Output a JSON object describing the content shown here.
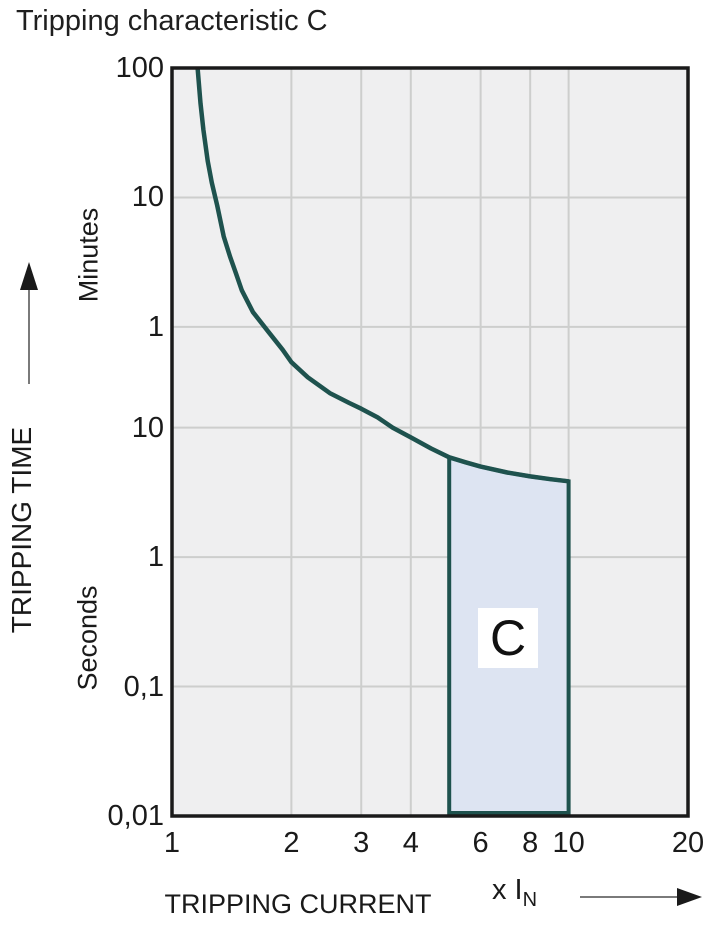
{
  "chart_data": {
    "type": "line",
    "title": "Tripping characteristic C",
    "x_axis": {
      "label": "TRIPPING CURRENT",
      "unit_prefix": "x I",
      "unit_sub": "N",
      "scale": "log",
      "min": 1,
      "max": 20,
      "ticks": [
        {
          "value": 1,
          "label": "1"
        },
        {
          "value": 2,
          "label": "2"
        },
        {
          "value": 3,
          "label": "3"
        },
        {
          "value": 4,
          "label": "4"
        },
        {
          "value": 6,
          "label": "6"
        },
        {
          "value": 8,
          "label": "8"
        },
        {
          "value": 10,
          "label": "10"
        },
        {
          "value": 20,
          "label": "20"
        }
      ],
      "gridlines": [
        2,
        3,
        4,
        6,
        8,
        10
      ]
    },
    "y_axis": {
      "label": "TRIPPING TIME",
      "scale": "log",
      "min_seconds": 0.01,
      "max_seconds": 6000,
      "unit_groups": [
        {
          "name": "Minutes",
          "ticks": [
            {
              "seconds": 6000,
              "label": "100"
            },
            {
              "seconds": 600,
              "label": "10"
            },
            {
              "seconds": 60,
              "label": "1"
            }
          ]
        },
        {
          "name": "Seconds",
          "ticks": [
            {
              "seconds": 10,
              "label": "10"
            },
            {
              "seconds": 1,
              "label": "1"
            },
            {
              "seconds": 0.1,
              "label": "0,1"
            },
            {
              "seconds": 0.01,
              "label": "0,01"
            }
          ]
        }
      ],
      "gridlines_seconds": [
        600,
        60,
        10,
        1,
        0.1
      ]
    },
    "series": [
      {
        "name": "C tripping curve",
        "points_x_in_y_seconds": [
          [
            1.16,
            6000
          ],
          [
            1.18,
            3200
          ],
          [
            1.2,
            2000
          ],
          [
            1.23,
            1150
          ],
          [
            1.26,
            780
          ],
          [
            1.3,
            520
          ],
          [
            1.35,
            300
          ],
          [
            1.4,
            210
          ],
          [
            1.45,
            155
          ],
          [
            1.5,
            115
          ],
          [
            1.6,
            78
          ],
          [
            1.75,
            55
          ],
          [
            1.9,
            40
          ],
          [
            2.0,
            32
          ],
          [
            2.2,
            24.5
          ],
          [
            2.5,
            18.5
          ],
          [
            2.8,
            15.5
          ],
          [
            3.0,
            14
          ],
          [
            3.3,
            12
          ],
          [
            3.6,
            10
          ],
          [
            4.0,
            8.4
          ],
          [
            4.5,
            6.9
          ],
          [
            5.0,
            5.9
          ],
          [
            5.5,
            5.4
          ],
          [
            6.0,
            5.0
          ],
          [
            7.0,
            4.5
          ],
          [
            8.0,
            4.2
          ],
          [
            9.0,
            4.0
          ],
          [
            10.0,
            3.85
          ]
        ]
      }
    ],
    "region": {
      "label": "C",
      "x_from": 5,
      "x_to": 10,
      "bottom_seconds": 0.01
    },
    "colors": {
      "curve": "#1e524e",
      "region_fill": "#dde4f2",
      "region_border": "#1e524e",
      "plot_background": "#efeff0",
      "gridline": "#cdcecd",
      "plot_border": "#1a1a1a",
      "text": "#1a1a1a"
    }
  }
}
